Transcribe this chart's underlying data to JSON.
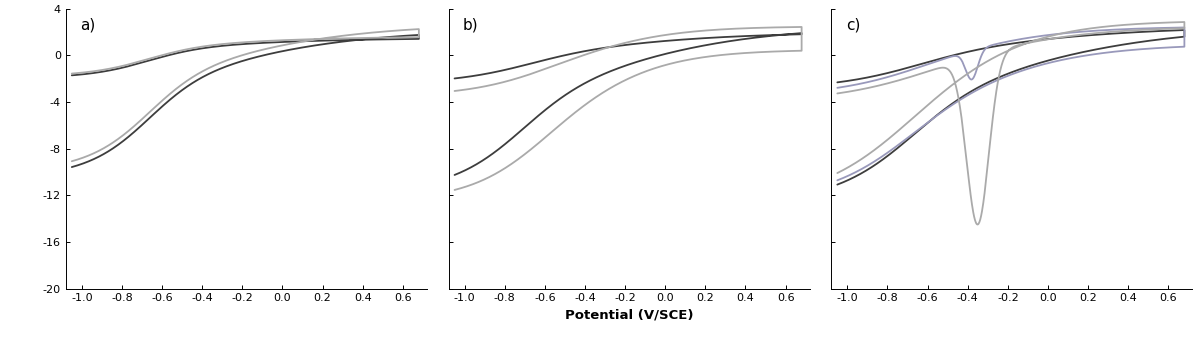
{
  "xlabel": "Potential (V/SCE)",
  "ylim": [
    -20,
    4
  ],
  "xlim": [
    -1.08,
    0.72
  ],
  "yticks": [
    4,
    0,
    -4,
    -8,
    -12,
    -16,
    -20
  ],
  "xticks": [
    -1.0,
    -0.8,
    -0.6,
    -0.4,
    -0.2,
    0.0,
    0.2,
    0.4,
    0.6
  ],
  "panel_labels": [
    "a)",
    "b)",
    "c)"
  ],
  "dark_color": "#3d3d3d",
  "light_color": "#aaaaaa",
  "blue_color": "#9999bb",
  "line_width": 1.3,
  "background": "#ffffff",
  "figsize": [
    11.96,
    3.54
  ],
  "dpi": 100
}
